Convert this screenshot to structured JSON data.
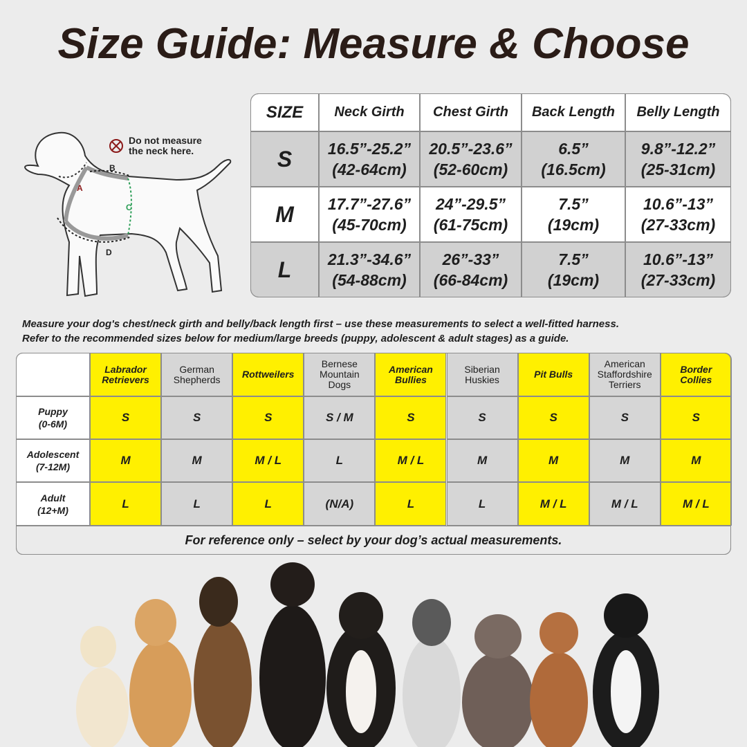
{
  "title": "Size Guide: Measure & Choose",
  "diagram": {
    "note": [
      "Do not measure",
      "the neck here."
    ],
    "labels": [
      "A",
      "B",
      "C",
      "D"
    ]
  },
  "size_table": {
    "header": [
      "SIZE",
      "Neck Girth",
      "Chest Girth",
      "Back Length",
      "Belly Length"
    ],
    "rows": [
      [
        "S",
        [
          "16.5”-25.2”",
          "(42-64cm)"
        ],
        [
          "20.5”-23.6”",
          "(52-60cm)"
        ],
        [
          "6.5”",
          "(16.5cm)"
        ],
        [
          "9.8”-12.2”",
          "(25-31cm)"
        ]
      ],
      [
        "M",
        [
          "17.7”-27.6”",
          "(45-70cm)"
        ],
        [
          "24”-29.5”",
          "(61-75cm)"
        ],
        [
          "7.5”",
          "(19cm)"
        ],
        [
          "10.6”-13”",
          "(27-33cm)"
        ]
      ],
      [
        "L",
        [
          "21.3”-34.6”",
          "(54-88cm)"
        ],
        [
          "26”-33”",
          "(66-84cm)"
        ],
        [
          "7.5”",
          "(19cm)"
        ],
        [
          "10.6”-13”",
          "(27-33cm)"
        ]
      ]
    ]
  },
  "instructions": [
    "Measure your dog's chest/neck girth and belly/back length first – use these measurements to select a well-fitted harness.",
    "Refer to the recommended sizes below for medium/large breeds (puppy, adolescent & adult stages) as a guide."
  ],
  "breed_table": {
    "breeds": [
      [
        "Labrador",
        "Retrievers"
      ],
      [
        "German",
        "Shepherds"
      ],
      [
        "Rottweilers"
      ],
      [
        "Bernese",
        "Mountain",
        "Dogs"
      ],
      [
        "American",
        "Bullies"
      ],
      [
        "Siberian",
        "Huskies"
      ],
      [
        "Pit Bulls"
      ],
      [
        "American",
        "Staffordshire",
        "Terriers"
      ],
      [
        "Border",
        "Collies"
      ]
    ],
    "rows": [
      {
        "stage": [
          "Puppy",
          "(0-6M)"
        ],
        "sizes": [
          "S",
          "S",
          "S",
          "S / M",
          "S",
          "S",
          "S",
          "S",
          "S"
        ]
      },
      {
        "stage": [
          "Adolescent",
          "(7-12M)"
        ],
        "sizes": [
          "M",
          "M",
          "M / L",
          "L",
          "M / L",
          "M",
          "M",
          "M",
          "M"
        ]
      },
      {
        "stage": [
          "Adult",
          "(12+M)"
        ],
        "sizes": [
          "L",
          "L",
          "L",
          "(N/A)",
          "L",
          "L",
          "M / L",
          "M / L",
          "M / L"
        ]
      }
    ],
    "footer": "For reference only – select by your dog’s actual measurements."
  }
}
